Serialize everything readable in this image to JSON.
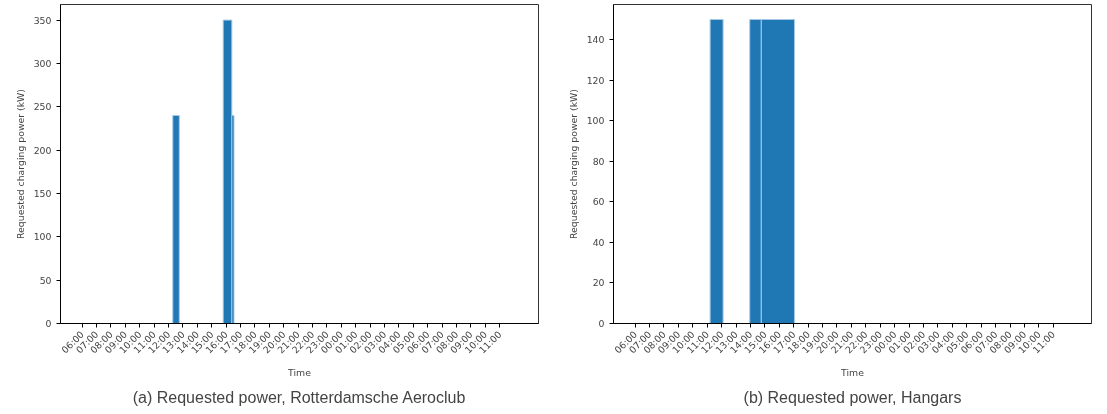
{
  "chart_data": [
    {
      "type": "histogram",
      "title": "(a) Requested power, Rotterdamsche Aeroclub",
      "xlabel": "Time",
      "ylabel": "Requested charging power (kW)",
      "color": "#1f77b4",
      "grid": false,
      "bins": [
        "2000-01-01T12:18",
        "2000-01-01T12:45",
        "2000-01-01T15:48",
        "2000-01-01T16:24",
        "2000-01-01T16:33"
      ],
      "values": [
        240,
        0,
        350,
        240
      ],
      "xlim": [
        "2000-01-01T04:30",
        "2000-01-02T13:42"
      ],
      "ylim": [
        0,
        368
      ],
      "yticks": [
        0,
        50,
        100,
        150,
        200,
        250,
        300,
        350
      ],
      "xticks": [
        {
          "value": "2000-01-01T06:00",
          "label": "06:00"
        },
        {
          "value": "2000-01-01T07:00",
          "label": "07:00"
        },
        {
          "value": "2000-01-01T08:00",
          "label": "08:00"
        },
        {
          "value": "2000-01-01T09:00",
          "label": "09:00"
        },
        {
          "value": "2000-01-01T10:00",
          "label": "10:00"
        },
        {
          "value": "2000-01-01T11:00",
          "label": "11:00"
        },
        {
          "value": "2000-01-01T12:00",
          "label": "12:00"
        },
        {
          "value": "2000-01-01T13:00",
          "label": "13:00"
        },
        {
          "value": "2000-01-01T14:00",
          "label": "14:00"
        },
        {
          "value": "2000-01-01T15:00",
          "label": "15:00"
        },
        {
          "value": "2000-01-01T16:00",
          "label": "16:00"
        },
        {
          "value": "2000-01-01T17:00",
          "label": "17:00"
        },
        {
          "value": "2000-01-01T18:00",
          "label": "18:00"
        },
        {
          "value": "2000-01-01T19:00",
          "label": "19:00"
        },
        {
          "value": "2000-01-01T20:00",
          "label": "20:00"
        },
        {
          "value": "2000-01-01T21:00",
          "label": "21:00"
        },
        {
          "value": "2000-01-01T22:00",
          "label": "22:00"
        },
        {
          "value": "2000-01-01T23:00",
          "label": "23:00"
        },
        {
          "value": "2000-01-02T00:00",
          "label": "00:00"
        },
        {
          "value": "2000-01-02T01:00",
          "label": "01:00"
        },
        {
          "value": "2000-01-02T02:00",
          "label": "02:00"
        },
        {
          "value": "2000-01-02T03:00",
          "label": "03:00"
        },
        {
          "value": "2000-01-02T04:00",
          "label": "04:00"
        },
        {
          "value": "2000-01-02T05:00",
          "label": "05:00"
        },
        {
          "value": "2000-01-02T06:00",
          "label": "06:00"
        },
        {
          "value": "2000-01-02T07:00",
          "label": "07:00"
        },
        {
          "value": "2000-01-02T08:00",
          "label": "08:00"
        },
        {
          "value": "2000-01-02T09:00",
          "label": "09:00"
        },
        {
          "value": "2000-01-02T10:00",
          "label": "10:00"
        },
        {
          "value": "2000-01-02T11:00",
          "label": "11:00"
        }
      ]
    },
    {
      "type": "histogram",
      "title": "(b) Requested power, Hangars",
      "xlabel": "Time",
      "ylabel": "Requested charging power (kW)",
      "color": "#1f77b4",
      "grid": false,
      "bins": [
        "2000-01-01T11:12",
        "2000-01-01T12:06",
        "2000-01-01T13:57",
        "2000-01-01T14:45",
        "2000-01-01T17:03"
      ],
      "values": [
        150,
        0,
        150,
        150
      ],
      "xlim": [
        "2000-01-01T04:30",
        "2000-01-02T13:39"
      ],
      "ylim": [
        0,
        157.4
      ],
      "yticks": [
        0,
        20,
        40,
        60,
        80,
        100,
        120,
        140
      ],
      "xticks": [
        {
          "value": "2000-01-01T06:00",
          "label": "06:00"
        },
        {
          "value": "2000-01-01T07:00",
          "label": "07:00"
        },
        {
          "value": "2000-01-01T08:00",
          "label": "08:00"
        },
        {
          "value": "2000-01-01T09:00",
          "label": "09:00"
        },
        {
          "value": "2000-01-01T10:00",
          "label": "10:00"
        },
        {
          "value": "2000-01-01T11:00",
          "label": "11:00"
        },
        {
          "value": "2000-01-01T12:00",
          "label": "12:00"
        },
        {
          "value": "2000-01-01T13:00",
          "label": "13:00"
        },
        {
          "value": "2000-01-01T14:00",
          "label": "14:00"
        },
        {
          "value": "2000-01-01T15:00",
          "label": "15:00"
        },
        {
          "value": "2000-01-01T16:00",
          "label": "16:00"
        },
        {
          "value": "2000-01-01T17:00",
          "label": "17:00"
        },
        {
          "value": "2000-01-01T18:00",
          "label": "18:00"
        },
        {
          "value": "2000-01-01T19:00",
          "label": "19:00"
        },
        {
          "value": "2000-01-01T20:00",
          "label": "20:00"
        },
        {
          "value": "2000-01-01T21:00",
          "label": "21:00"
        },
        {
          "value": "2000-01-01T22:00",
          "label": "22:00"
        },
        {
          "value": "2000-01-01T23:00",
          "label": "23:00"
        },
        {
          "value": "2000-01-02T00:00",
          "label": "00:00"
        },
        {
          "value": "2000-01-02T01:00",
          "label": "01:00"
        },
        {
          "value": "2000-01-02T02:00",
          "label": "02:00"
        },
        {
          "value": "2000-01-02T03:00",
          "label": "03:00"
        },
        {
          "value": "2000-01-02T04:00",
          "label": "04:00"
        },
        {
          "value": "2000-01-02T05:00",
          "label": "05:00"
        },
        {
          "value": "2000-01-02T06:00",
          "label": "06:00"
        },
        {
          "value": "2000-01-02T07:00",
          "label": "07:00"
        },
        {
          "value": "2000-01-02T08:00",
          "label": "08:00"
        },
        {
          "value": "2000-01-02T09:00",
          "label": "09:00"
        },
        {
          "value": "2000-01-02T10:00",
          "label": "10:00"
        },
        {
          "value": "2000-01-02T11:00",
          "label": "11:00"
        }
      ]
    }
  ]
}
